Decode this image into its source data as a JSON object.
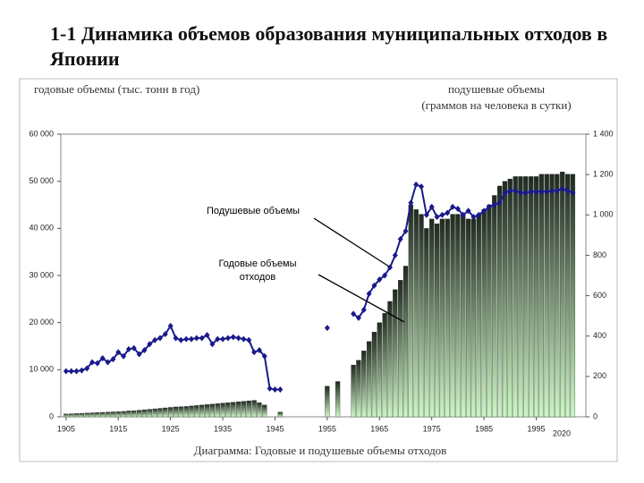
{
  "chart_data": {
    "type": "bar_line",
    "title": "1-1 Динамика объемов образования муниципальных отходов в Японии",
    "ylabel": "годовые объемы (тыс. тонн в год)",
    "y2label": [
      "подушевые объемы",
      "(граммов на человека в сутки)"
    ],
    "caption": "Диаграмма: Годовые и подушевые объемы отходов",
    "x_annotation": "2020",
    "annotations": [
      [
        "Подушевые объемы"
      ],
      [
        "Годовые объемы",
        "отходов"
      ]
    ],
    "x": [
      1905,
      1906,
      1907,
      1908,
      1909,
      1910,
      1911,
      1912,
      1913,
      1914,
      1915,
      1916,
      1917,
      1918,
      1919,
      1920,
      1921,
      1922,
      1923,
      1924,
      1925,
      1926,
      1927,
      1928,
      1929,
      1930,
      1931,
      1932,
      1933,
      1934,
      1935,
      1936,
      1937,
      1938,
      1939,
      1940,
      1941,
      1942,
      1943,
      1944,
      1945,
      1946,
      1947,
      1948,
      1949,
      1950,
      1951,
      1952,
      1953,
      1954,
      1955,
      1956,
      1957,
      1958,
      1959,
      1960,
      1961,
      1962,
      1963,
      1964,
      1965,
      1966,
      1967,
      1968,
      1969,
      1970,
      1971,
      1972,
      1973,
      1974,
      1975,
      1976,
      1977,
      1978,
      1979,
      1980,
      1981,
      1982,
      1983,
      1984,
      1985,
      1986,
      1987,
      1988,
      1989,
      1990,
      1991,
      1992,
      1993,
      1994,
      1995,
      1996,
      1997,
      1998,
      1999,
      2000,
      2001,
      2002
    ],
    "series": [
      {
        "name": "Годовые объемы отходов",
        "kind": "bar",
        "color": "#1f2a1f",
        "values": [
          600,
          650,
          700,
          750,
          800,
          850,
          900,
          950,
          1000,
          1050,
          1100,
          1150,
          1250,
          1300,
          1400,
          1500,
          1600,
          1700,
          1800,
          1900,
          2000,
          2100,
          2150,
          2200,
          2300,
          2400,
          2500,
          2600,
          2700,
          2800,
          2900,
          3000,
          3100,
          3200,
          3300,
          3400,
          3500,
          3000,
          2500,
          null,
          null,
          1000,
          null,
          null,
          null,
          null,
          null,
          null,
          null,
          null,
          6500,
          null,
          7500,
          null,
          null,
          11000,
          12000,
          14000,
          16000,
          18000,
          20000,
          22000,
          24500,
          27000,
          29000,
          32000,
          45000,
          44000,
          43000,
          40000,
          42000,
          41000,
          42000,
          42000,
          43000,
          43000,
          43000,
          42000,
          42000,
          43000,
          44000,
          45000,
          47000,
          49000,
          50000,
          50500,
          51000,
          51000,
          51000,
          51000,
          51000,
          51500,
          51500,
          51500,
          51500,
          52000,
          51500,
          51500
        ]
      },
      {
        "name": "Подушевые объемы",
        "kind": "line",
        "axis": "y2",
        "color": "#1a1a8c",
        "values": [
          226,
          226,
          226,
          230,
          240,
          270,
          265,
          290,
          270,
          285,
          320,
          300,
          335,
          340,
          310,
          330,
          360,
          380,
          390,
          410,
          450,
          390,
          380,
          385,
          385,
          390,
          390,
          405,
          360,
          385,
          385,
          390,
          395,
          390,
          385,
          380,
          320,
          330,
          300,
          140,
          135,
          135,
          null,
          null,
          null,
          null,
          null,
          null,
          null,
          null,
          440,
          null,
          null,
          null,
          null,
          510,
          490,
          530,
          610,
          650,
          680,
          700,
          740,
          800,
          880,
          920,
          1060,
          1150,
          1140,
          1000,
          1040,
          990,
          1000,
          1010,
          1040,
          1030,
          1000,
          1020,
          990,
          1000,
          1020,
          1040,
          1050,
          1060,
          1110,
          1120,
          1120,
          1110,
          1110,
          1115,
          1115,
          1115,
          1115,
          1120,
          1120,
          1130,
          1120,
          1110
        ]
      }
    ],
    "xlim": [
      1904,
      2004.5
    ],
    "xticks": [
      1905,
      1915,
      1925,
      1935,
      1945,
      1955,
      1965,
      1975,
      1985,
      1995
    ],
    "ylim": [
      0,
      60000
    ],
    "yticks": [
      0,
      {
        "value": 10000,
        "label": "10 000"
      },
      {
        "value": 20000,
        "label": "20 000"
      },
      {
        "value": 30000,
        "label": "30 000"
      },
      {
        "value": 40000,
        "label": "40 000"
      },
      {
        "value": 50000,
        "label": "50 000"
      },
      {
        "value": 60000,
        "label": "60 000"
      }
    ],
    "y2lim": [
      0,
      1400
    ],
    "y2ticks": [
      0,
      200,
      400,
      600,
      800,
      {
        "value": 1000,
        "label": "1 000"
      },
      {
        "value": 1200,
        "label": "1 200"
      },
      {
        "value": 1400,
        "label": "1 400"
      }
    ],
    "grid": false
  }
}
